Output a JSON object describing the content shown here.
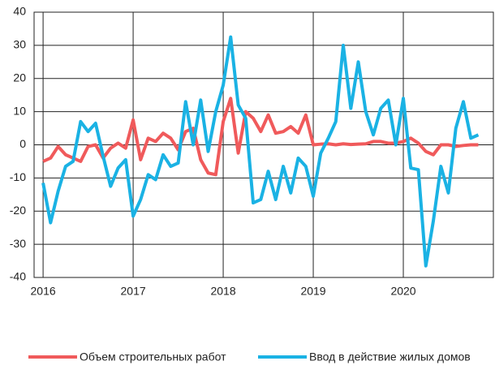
{
  "chart_data": {
    "type": "line",
    "x": [
      2016,
      2016.083,
      2016.167,
      2016.25,
      2016.333,
      2016.417,
      2016.5,
      2016.583,
      2016.667,
      2016.75,
      2016.833,
      2016.917,
      2017,
      2017.083,
      2017.167,
      2017.25,
      2017.333,
      2017.417,
      2017.5,
      2017.583,
      2017.667,
      2017.75,
      2017.833,
      2017.917,
      2018,
      2018.083,
      2018.167,
      2018.25,
      2018.333,
      2018.417,
      2018.5,
      2018.583,
      2018.667,
      2018.75,
      2018.833,
      2018.917,
      2019,
      2019.083,
      2019.167,
      2019.25,
      2019.333,
      2019.417,
      2019.5,
      2019.583,
      2019.667,
      2019.75,
      2019.833,
      2019.917,
      2020,
      2020.083,
      2020.167,
      2020.25,
      2020.333,
      2020.417,
      2020.5,
      2020.583,
      2020.667,
      2020.75,
      2020.833
    ],
    "series": [
      {
        "name": "Объем строительных работ",
        "color": "#f05a5b",
        "values": [
          -5,
          -4,
          -0.5,
          -3,
          -4,
          -5,
          -0.5,
          0,
          -4,
          -1,
          0.5,
          -1,
          7.5,
          -4.5,
          2,
          1,
          3.5,
          2,
          -1.5,
          4,
          5,
          -4.5,
          -8.5,
          -9,
          7,
          14,
          -2.5,
          10,
          8,
          4,
          9,
          3.5,
          4,
          5.5,
          3.5,
          9,
          0,
          0.2,
          0.3,
          0,
          0.3,
          0.1,
          0.2,
          0.3,
          1,
          1,
          0.5,
          0.5,
          1,
          2,
          0.5,
          -2,
          -3,
          0,
          0,
          -0.5,
          -0.2,
          0,
          0
        ]
      },
      {
        "name": "Ввод в действие жилых домов",
        "color": "#1ab2e4",
        "values": [
          -11.5,
          -23.5,
          -14,
          -6.5,
          -5,
          7,
          4,
          6.5,
          -3.5,
          -12.5,
          -7,
          -4.5,
          -21.5,
          -16.5,
          -9,
          -10.5,
          -3,
          -6.5,
          -5.5,
          13,
          0,
          13.5,
          -2,
          10,
          18,
          32.5,
          12,
          8,
          -17.5,
          -16.5,
          -8,
          -16.5,
          -6.5,
          -14.5,
          -4,
          -6.5,
          -15.5,
          -2.5,
          2,
          7,
          30,
          11,
          25,
          10,
          3,
          11,
          13.5,
          0,
          14,
          -7,
          -7.5,
          -36.5,
          -23,
          -6.5,
          -14.5,
          5,
          13,
          2,
          3
        ]
      }
    ],
    "xlim": [
      2015.9,
      2021
    ],
    "xticks": [
      2016,
      2017,
      2018,
      2019,
      2020
    ],
    "ylim": [
      -40,
      40
    ],
    "yticks": [
      -40,
      -30,
      -20,
      -10,
      0,
      10,
      20,
      30,
      40
    ],
    "grid": true,
    "legend": "bottom"
  }
}
